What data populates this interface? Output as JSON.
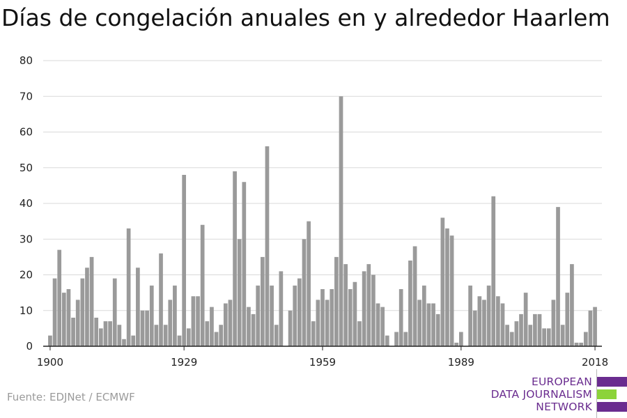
{
  "title": "Días de congelación anuales en y alrededor Haarlem",
  "source": "Fuente: EDJNet / ECMWF",
  "logo": {
    "lines": [
      "EUROPEAN",
      "DATA JOURNALISM",
      "NETWORK"
    ],
    "colors": {
      "purple": "#6a2c8f",
      "green": "#8cd33a"
    }
  },
  "chart_data": {
    "type": "bar",
    "title": "Días de congelación anuales en y alrededor Haarlem",
    "xlabel": "",
    "ylabel": "",
    "ylim": [
      0,
      80
    ],
    "yticks": [
      0,
      10,
      20,
      30,
      40,
      50,
      60,
      70,
      80
    ],
    "xticks": [
      1900,
      1929,
      1959,
      1989,
      2018
    ],
    "grid": true,
    "bar_color": "#9a9a9a",
    "x": [
      1900,
      1901,
      1902,
      1903,
      1904,
      1905,
      1906,
      1907,
      1908,
      1909,
      1910,
      1911,
      1912,
      1913,
      1914,
      1915,
      1916,
      1917,
      1918,
      1919,
      1920,
      1921,
      1922,
      1923,
      1924,
      1925,
      1926,
      1927,
      1928,
      1929,
      1930,
      1931,
      1932,
      1933,
      1934,
      1935,
      1936,
      1937,
      1938,
      1939,
      1940,
      1941,
      1942,
      1943,
      1944,
      1945,
      1946,
      1947,
      1948,
      1949,
      1950,
      1951,
      1952,
      1953,
      1954,
      1955,
      1956,
      1957,
      1958,
      1959,
      1960,
      1961,
      1962,
      1963,
      1964,
      1965,
      1966,
      1967,
      1968,
      1969,
      1970,
      1971,
      1972,
      1973,
      1974,
      1975,
      1976,
      1977,
      1978,
      1979,
      1980,
      1981,
      1982,
      1983,
      1984,
      1985,
      1986,
      1987,
      1988,
      1989,
      1990,
      1991,
      1992,
      1993,
      1994,
      1995,
      1996,
      1997,
      1998,
      1999,
      2000,
      2001,
      2002,
      2003,
      2004,
      2005,
      2006,
      2007,
      2008,
      2009,
      2010,
      2011,
      2012,
      2013,
      2014,
      2015,
      2016,
      2017,
      2018
    ],
    "values": [
      3,
      19,
      27,
      15,
      16,
      8,
      13,
      19,
      22,
      25,
      8,
      5,
      7,
      7,
      19,
      6,
      2,
      33,
      3,
      22,
      10,
      10,
      17,
      6,
      26,
      6,
      13,
      17,
      3,
      48,
      5,
      14,
      14,
      34,
      7,
      11,
      4,
      6,
      12,
      13,
      49,
      30,
      46,
      11,
      9,
      17,
      25,
      56,
      17,
      6,
      21,
      0,
      10,
      17,
      19,
      30,
      35,
      7,
      13,
      16,
      13,
      16,
      25,
      70,
      23,
      16,
      18,
      7,
      21,
      23,
      20,
      12,
      11,
      3,
      0,
      4,
      16,
      4,
      24,
      28,
      13,
      17,
      12,
      12,
      9,
      36,
      33,
      31,
      1,
      4,
      0,
      17,
      10,
      14,
      13,
      17,
      42,
      14,
      12,
      6,
      4,
      7,
      9,
      15,
      6,
      9,
      9,
      5,
      5,
      13,
      39,
      6,
      15,
      23,
      1,
      1,
      4,
      10,
      11
    ]
  }
}
